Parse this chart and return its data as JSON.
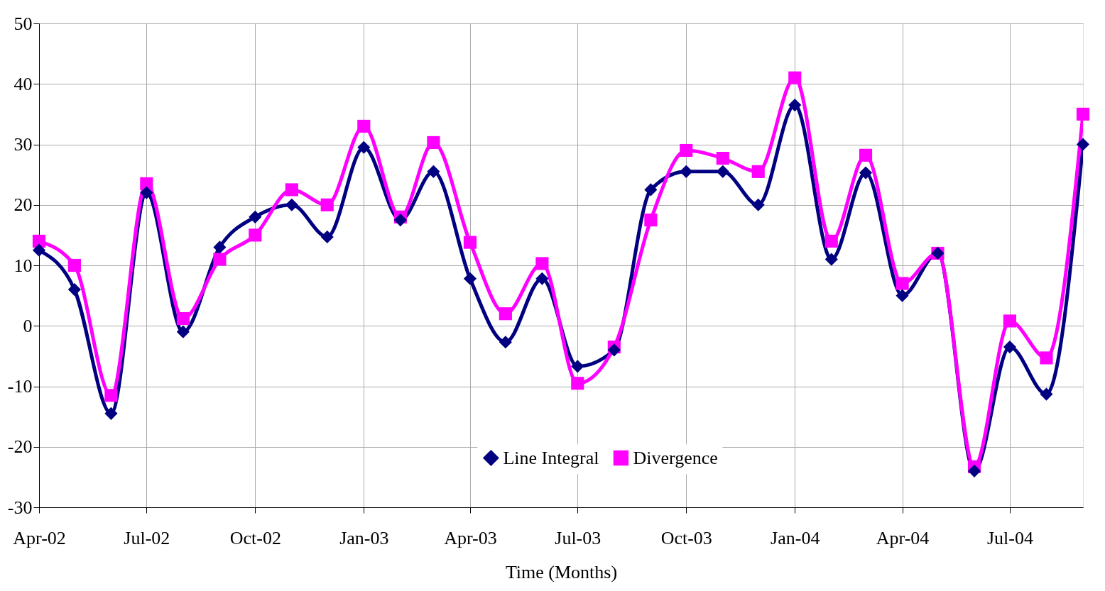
{
  "chart_data": {
    "type": "line",
    "xlabel": "Time (Months)",
    "x": [
      "2002-04",
      "2002-05",
      "2002-06",
      "2002-07",
      "2002-08",
      "2002-09",
      "2002-10",
      "2002-11",
      "2002-12",
      "2003-01",
      "2003-02",
      "2003-03",
      "2003-04",
      "2003-05",
      "2003-06",
      "2003-07",
      "2003-08",
      "2003-09",
      "2003-10",
      "2003-11",
      "2003-12",
      "2004-01",
      "2004-02",
      "2004-03",
      "2004-04",
      "2004-05",
      "2004-06",
      "2004-07",
      "2004-08",
      "2004-09"
    ],
    "series": [
      {
        "name": "Line Integral",
        "color": "#000080",
        "marker": "diamond",
        "values": [
          12.5,
          6,
          -14.5,
          22,
          -1,
          13,
          18,
          20,
          14.7,
          29.5,
          17.5,
          25.5,
          7.8,
          -2.7,
          7.8,
          -6.7,
          -4,
          22.5,
          25.5,
          25.5,
          20,
          36.5,
          11,
          25.3,
          5,
          12,
          -24,
          -3.5,
          -11.3,
          30
        ]
      },
      {
        "name": "Divergence",
        "color": "#ff00ff",
        "marker": "square",
        "values": [
          14,
          10,
          -11.5,
          23.5,
          1.2,
          11,
          15,
          22.5,
          20,
          33,
          18,
          30.3,
          13.8,
          2,
          10.3,
          -9.5,
          -3.5,
          17.5,
          29,
          27.7,
          25.5,
          41,
          14,
          28.2,
          7,
          12,
          -23.3,
          0.8,
          -5.3,
          35
        ]
      }
    ],
    "xlim": [
      "2002-04",
      "2004-09"
    ],
    "xticks": [
      {
        "value": "2002-04",
        "label": "Apr-02"
      },
      {
        "value": "2002-07",
        "label": "Jul-02"
      },
      {
        "value": "2002-10",
        "label": "Oct-02"
      },
      {
        "value": "2003-01",
        "label": "Jan-03"
      },
      {
        "value": "2003-04",
        "label": "Apr-03"
      },
      {
        "value": "2003-07",
        "label": "Jul-03"
      },
      {
        "value": "2003-10",
        "label": "Oct-03"
      },
      {
        "value": "2004-01",
        "label": "Jan-04"
      },
      {
        "value": "2004-04",
        "label": "Apr-04"
      },
      {
        "value": "2004-07",
        "label": "Jul-04"
      }
    ],
    "ylim": [
      -30,
      50
    ],
    "yticks": [
      -30,
      -20,
      -10,
      0,
      10,
      20,
      30,
      40,
      50
    ],
    "grid": true,
    "legend": "bottom",
    "line_style": "solid"
  }
}
